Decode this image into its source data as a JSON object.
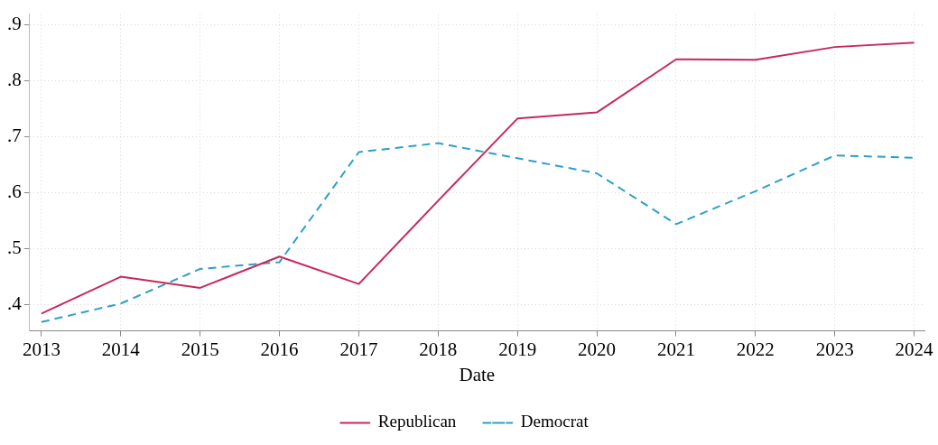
{
  "chart_data": {
    "type": "line",
    "xlabel": "Date",
    "x": [
      2013,
      2014,
      2015,
      2016,
      2017,
      2018,
      2019,
      2020,
      2021,
      2022,
      2023,
      2024
    ],
    "series": [
      {
        "name": "Republican",
        "color": "#c8285a",
        "line_style": "solid",
        "values": [
          0.384,
          0.45,
          0.43,
          0.486,
          0.437,
          0.586,
          0.733,
          0.744,
          0.839,
          0.838,
          0.861,
          0.869
        ]
      },
      {
        "name": "Democrat",
        "color": "#2e9fc7",
        "line_style": "dashed",
        "values": [
          0.369,
          0.402,
          0.464,
          0.476,
          0.673,
          0.689,
          0.662,
          0.635,
          0.544,
          0.603,
          0.667,
          0.663
        ]
      }
    ],
    "xlim": [
      2012.85,
      2024.13
    ],
    "xticks": [
      2013,
      2014,
      2015,
      2016,
      2017,
      2018,
      2019,
      2020,
      2021,
      2022,
      2023,
      2024
    ],
    "ylim": [
      0.353,
      0.92
    ],
    "yticks": [
      {
        "value": 0.4,
        "label": ".4"
      },
      {
        "value": 0.5,
        "label": ".5"
      },
      {
        "value": 0.6,
        "label": ".6"
      },
      {
        "value": 0.7,
        "label": ".7"
      },
      {
        "value": 0.8,
        "label": ".8"
      },
      {
        "value": 0.9,
        "label": ".9"
      }
    ],
    "grid": true,
    "legend": "bottom",
    "marker": "none"
  }
}
